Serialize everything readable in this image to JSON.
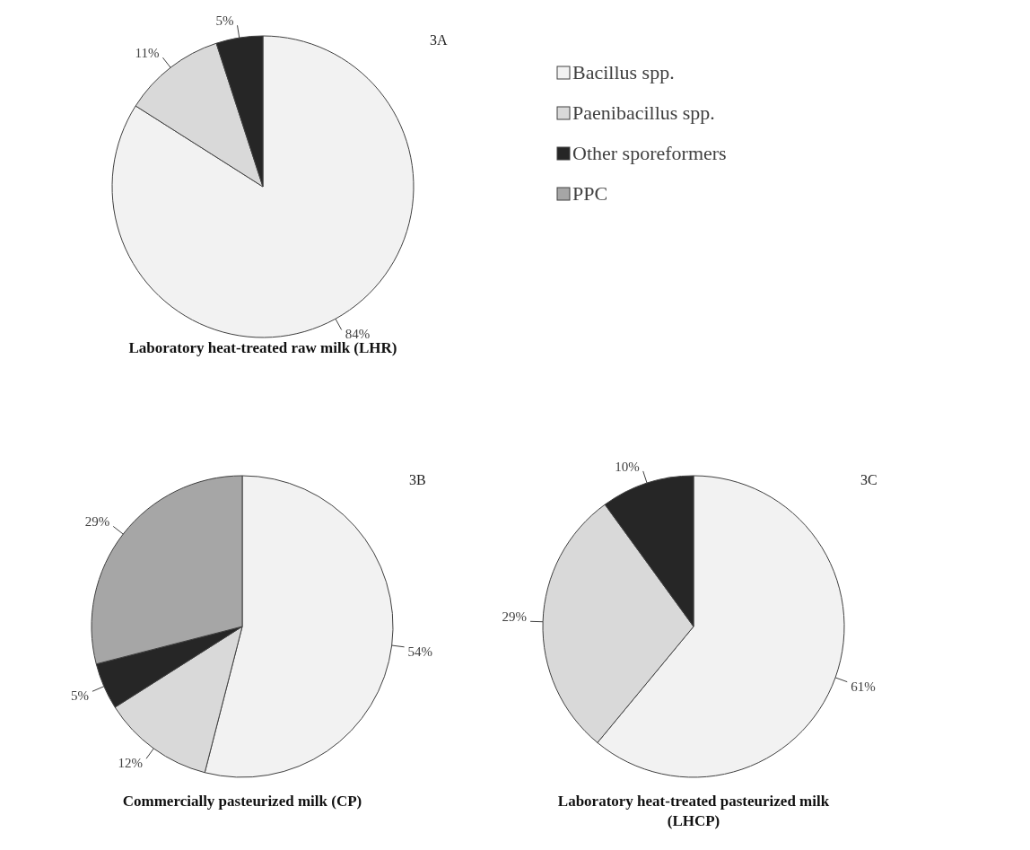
{
  "chart_data": [
    {
      "type": "pie",
      "title": "Laboratory heat-treated raw milk (LHR)",
      "annotations": [
        "3A"
      ],
      "categories": [
        "Bacillus spp.",
        "Paenibacillus spp.",
        "Other sporeformers",
        "PPC"
      ],
      "values": [
        84,
        11,
        5,
        0
      ],
      "value_labels": [
        "84%",
        "11%",
        "5%",
        null
      ],
      "colors": [
        "#f2f2f2",
        "#d9d9d9",
        "#262626",
        "#a6a6a6"
      ],
      "legend": "right"
    },
    {
      "type": "pie",
      "title": "Commercially pasteurized milk (CP)",
      "annotations": [
        "3B"
      ],
      "categories": [
        null,
        null,
        null,
        null
      ],
      "values": [
        54,
        12,
        5,
        29
      ],
      "value_labels": [
        "54%",
        "12%",
        "5%",
        "29%"
      ],
      "colors": [
        "#f2f2f2",
        "#d9d9d9",
        "#262626",
        "#a6a6a6"
      ]
    },
    {
      "type": "pie",
      "title": "Laboratory heat-treated pasteurized milk (LHCP)",
      "annotations": [
        "3C"
      ],
      "categories": [
        null,
        null,
        null
      ],
      "values": [
        61,
        29,
        10
      ],
      "value_labels": [
        "61%",
        "29%",
        "10%"
      ],
      "colors": [
        "#f2f2f2",
        "#d9d9d9",
        "#262626"
      ]
    }
  ]
}
